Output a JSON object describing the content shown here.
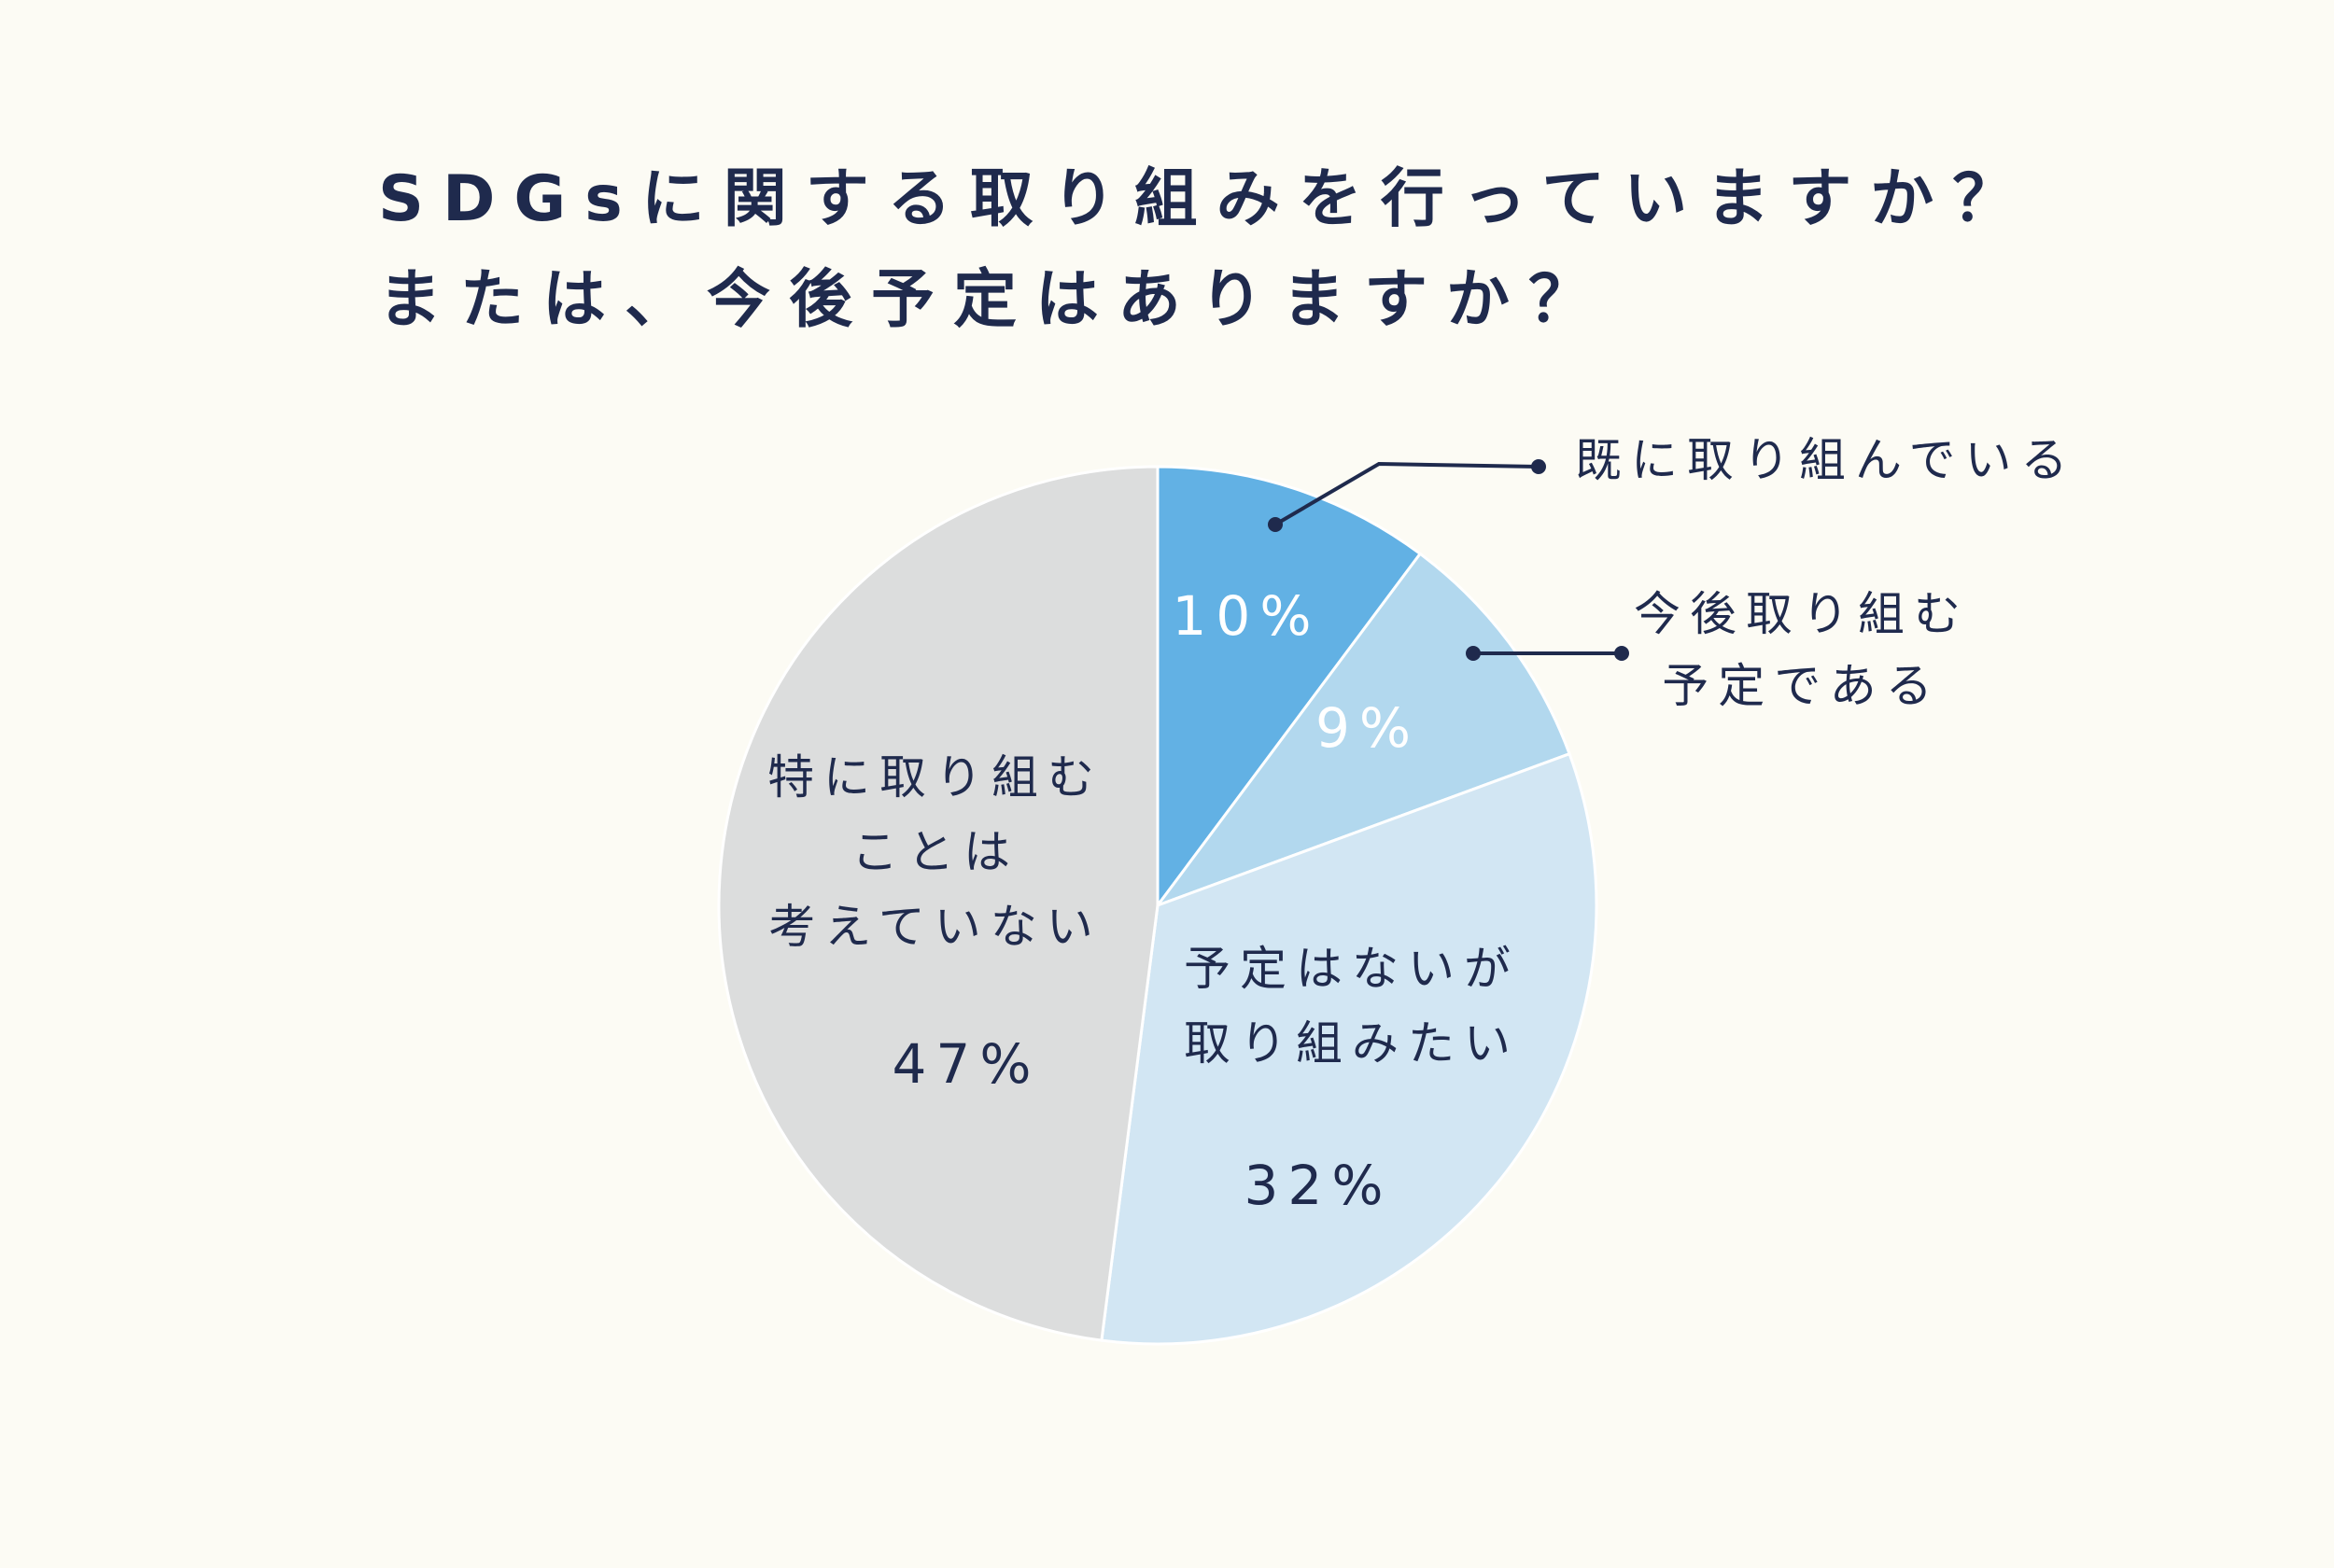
{
  "title": {
    "line1": "SDGsに関する取り組みを行っていますか？",
    "line2": "または、今後予定はありますか？"
  },
  "colors": {
    "background": "#fcfbf4",
    "text": "#1f2a4d",
    "slice_outline": "#ffffff"
  },
  "chart_data": {
    "type": "pie",
    "title": "SDGsに関する取り組みを行っていますか？ または、今後予定はありますか？",
    "start_angle_deg": 0,
    "direction": "clockwise",
    "slices": [
      {
        "label_lines": [
          "既に取り組んでいる"
        ],
        "value": 10,
        "value_label": "10%",
        "color": "#62b1e4",
        "label_outside": true,
        "value_text_color": "#ffffff"
      },
      {
        "label_lines": [
          "今後取り組む",
          "予定である"
        ],
        "value": 9,
        "value_label": "9%",
        "color": "#b2d8ee",
        "label_outside": true,
        "value_text_color": "#ffffff"
      },
      {
        "label_lines": [
          "予定はないが",
          "取り組みたい"
        ],
        "value": 32,
        "value_label": "32%",
        "color": "#d2e6f3",
        "label_outside": false,
        "value_text_color": "#1f2a4d"
      },
      {
        "label_lines": [
          "特に取り組む",
          "ことは",
          "考えていない"
        ],
        "value": 47,
        "value_label": "47%",
        "color": "#dcdddd",
        "label_outside": false,
        "value_text_color": "#1f2a4d"
      }
    ]
  }
}
